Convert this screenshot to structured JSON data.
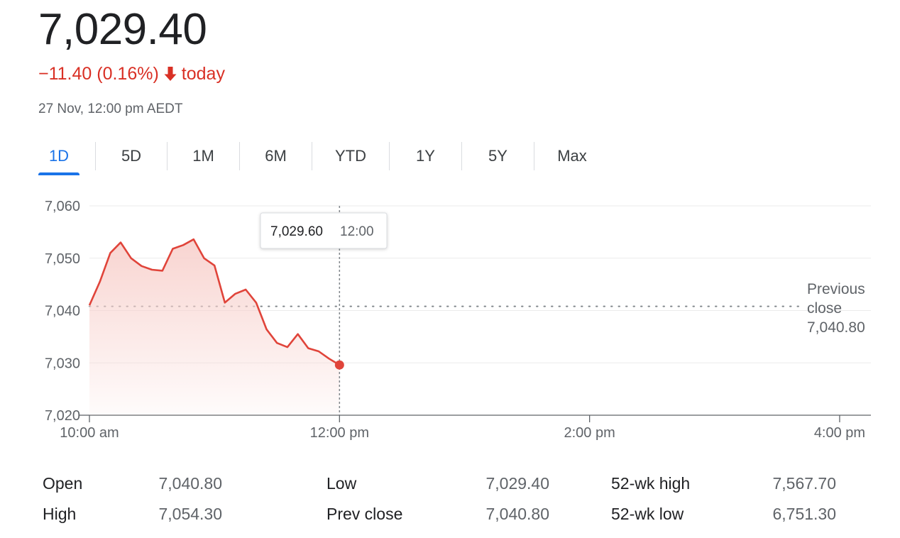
{
  "quote": {
    "price": "7,029.40",
    "change": "−11.40 (0.16%)",
    "change_direction_icon": "arrow-down-icon",
    "change_suffix": "today",
    "timestamp": "27 Nov, 12:00 pm AEDT",
    "down_color": "#d93025"
  },
  "tabs": [
    {
      "label": "1D",
      "active": true
    },
    {
      "label": "5D",
      "active": false
    },
    {
      "label": "1M",
      "active": false
    },
    {
      "label": "6M",
      "active": false
    },
    {
      "label": "YTD",
      "active": false
    },
    {
      "label": "1Y",
      "active": false
    },
    {
      "label": "5Y",
      "active": false
    },
    {
      "label": "Max",
      "active": false
    }
  ],
  "tooltip": {
    "value": "7,029.60",
    "time": "12:00"
  },
  "previous_close_label": {
    "line1": "Previous",
    "line2": "close",
    "value": "7,040.80"
  },
  "stats": [
    {
      "label": "Open",
      "value": "7,040.80"
    },
    {
      "label": "High",
      "value": "7,054.30"
    },
    {
      "label": "Low",
      "value": "7,029.40"
    },
    {
      "label": "Prev close",
      "value": "7,040.80"
    },
    {
      "label": "52-wk high",
      "value": "7,567.70"
    },
    {
      "label": "52-wk low",
      "value": "6,751.30"
    }
  ],
  "chart_data": {
    "type": "area",
    "x_unit": "time of day",
    "xlim": [
      "10:00",
      "16:15"
    ],
    "ylim": [
      7020,
      7060
    ],
    "y_ticks": [
      7020,
      7030,
      7040,
      7050,
      7060
    ],
    "y_tick_labels": [
      "7,020",
      "7,030",
      "7,040",
      "7,050",
      "7,060"
    ],
    "x_ticks": [
      "10:00",
      "12:00",
      "14:00",
      "16:00"
    ],
    "x_tick_labels": [
      "10:00 am",
      "12:00 pm",
      "2:00 pm",
      "4:00 pm"
    ],
    "previous_close": 7040.8,
    "cursor_time": "12:00",
    "line_color": "#e0443a",
    "fill_color": "#f8d2ce",
    "series": [
      {
        "x": [
          "10:00",
          "10:05",
          "10:10",
          "10:15",
          "10:20",
          "10:25",
          "10:30",
          "10:35",
          "10:40",
          "10:45",
          "10:50",
          "10:55",
          "11:00",
          "11:05",
          "11:10",
          "11:15",
          "11:20",
          "11:25",
          "11:30",
          "11:35",
          "11:40",
          "11:45",
          "11:50",
          "11:55",
          "12:00"
        ],
        "y": [
          7041.0,
          7045.5,
          7051.0,
          7053.0,
          7050.0,
          7048.5,
          7047.8,
          7047.6,
          7051.8,
          7052.5,
          7053.6,
          7050.0,
          7048.6,
          7041.5,
          7043.2,
          7044.0,
          7041.5,
          7036.4,
          7033.8,
          7033.0,
          7035.5,
          7032.8,
          7032.2,
          7030.8,
          7029.6
        ]
      }
    ]
  }
}
